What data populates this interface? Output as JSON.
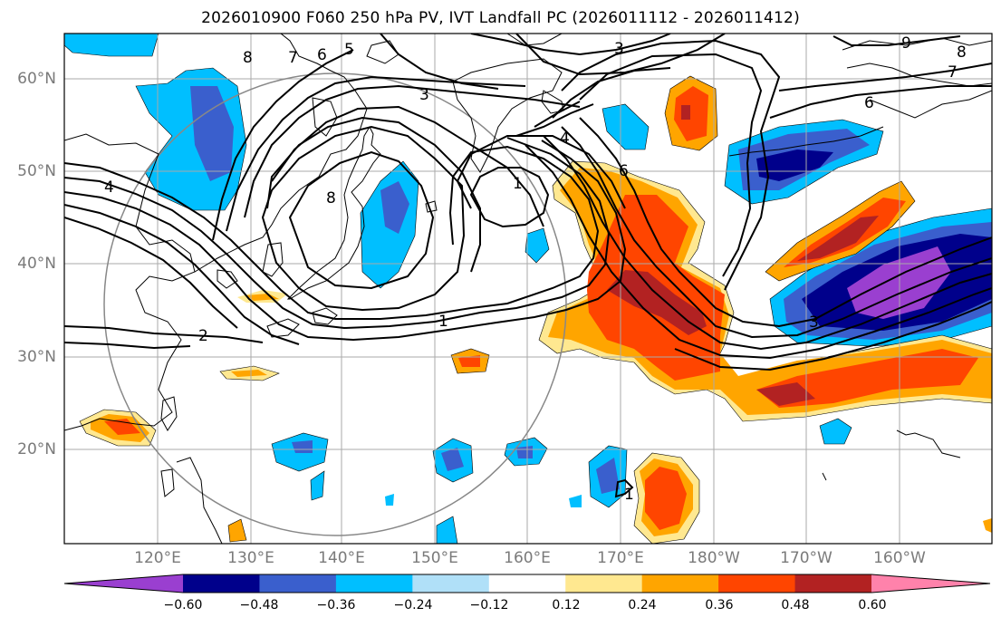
{
  "title": "2026010900 F060 250 hPa PV, IVT Landfall PC (2026011112 - 2026011412)",
  "lat_labels": [
    "60°N",
    "50°N",
    "40°N",
    "30°N",
    "20°N"
  ],
  "lon_labels": [
    "120°E",
    "130°E",
    "140°E",
    "150°E",
    "160°E",
    "170°E",
    "180°W",
    "170°W",
    "160°W"
  ],
  "contour_labels": [
    "8",
    "7",
    "6",
    "5",
    "3",
    "3",
    "4",
    "4",
    "6",
    "1",
    "8",
    "2",
    "1",
    "3",
    "1",
    "9",
    "8",
    "7",
    "6"
  ],
  "colorbar": {
    "ticks": [
      "−0.60",
      "−0.48",
      "−0.36",
      "−0.24",
      "−0.12",
      "0.12",
      "0.24",
      "0.36",
      "0.48",
      "0.60"
    ],
    "colors": [
      "#9a3fd0",
      "#00008b",
      "#3a5fcd",
      "#00bfff",
      "#b0e0f8",
      "#ffffff",
      "#ffe890",
      "#ffa500",
      "#ff4500",
      "#b22222",
      "#ff82ab"
    ]
  },
  "colors": {
    "grid": "#aaaaaa",
    "circle": "#888888",
    "coast": "#000000",
    "contour": "#000000"
  }
}
